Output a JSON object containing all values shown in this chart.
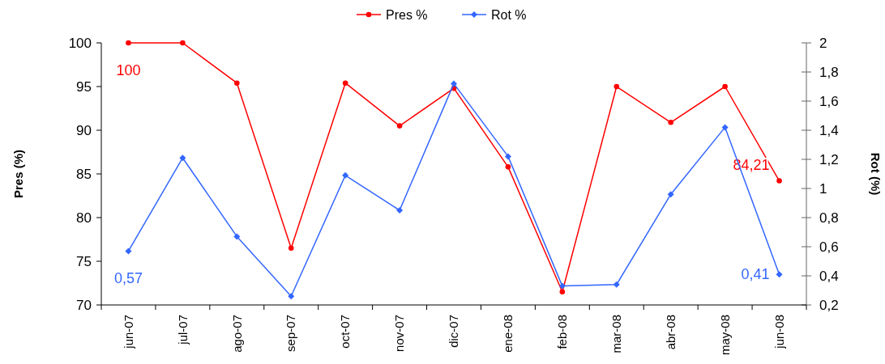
{
  "chart_data": {
    "type": "line",
    "ylabel": "Pres (%)",
    "y2label": "Rot (%)",
    "categories": [
      "jun-07",
      "jul-07",
      "ago-07",
      "sep-07",
      "oct-07",
      "nov-07",
      "dic-07",
      "ene-08",
      "feb-08",
      "mar-08",
      "abr-08",
      "may-08",
      "jun-08"
    ],
    "series": [
      {
        "name": "Pres %",
        "color": "#ff0000",
        "marker": "circle",
        "values": [
          100,
          100,
          95.4,
          76.5,
          95.4,
          90.5,
          94.8,
          85.8,
          71.5,
          95.0,
          90.9,
          95.0,
          84.21
        ],
        "value_labels": [
          "100",
          null,
          null,
          null,
          null,
          null,
          null,
          null,
          null,
          null,
          null,
          null,
          "84,21"
        ]
      },
      {
        "name": "Rot %",
        "color": "#3366ff",
        "marker": "diamond",
        "axis": "y2",
        "values": [
          0.57,
          1.21,
          0.67,
          0.26,
          1.09,
          0.85,
          1.72,
          1.22,
          0.33,
          0.34,
          0.96,
          1.42,
          0.41
        ],
        "value_labels": [
          "0,57",
          null,
          null,
          null,
          null,
          null,
          null,
          null,
          null,
          null,
          null,
          null,
          "0,41"
        ]
      }
    ],
    "ylim": [
      70,
      100
    ],
    "yticks": [
      70,
      75,
      80,
      85,
      90,
      95,
      100
    ],
    "y2lim": [
      0.2,
      2
    ],
    "y2ticks": [
      {
        "value": 0.2,
        "label": "0,2"
      },
      {
        "value": 0.4,
        "label": "0,4"
      },
      {
        "value": 0.6,
        "label": "0,6"
      },
      {
        "value": 0.8,
        "label": "0,8"
      },
      {
        "value": 1,
        "label": "1"
      },
      {
        "value": 1.2,
        "label": "1,2"
      },
      {
        "value": 1.4,
        "label": "1,4"
      },
      {
        "value": 1.6,
        "label": "1,6"
      },
      {
        "value": 1.8,
        "label": "1,8"
      },
      {
        "value": 2,
        "label": "2"
      }
    ],
    "grid": false,
    "legend": "top",
    "line_style": "solid"
  }
}
